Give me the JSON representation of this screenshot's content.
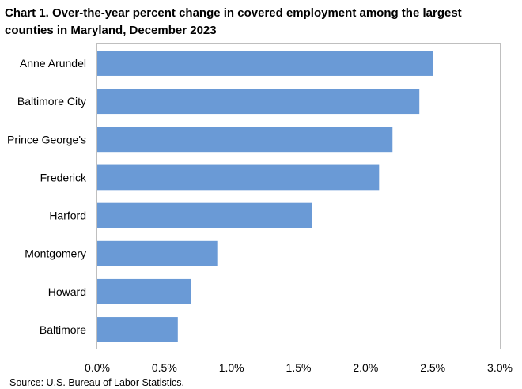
{
  "chart_data": {
    "type": "bar",
    "orientation": "horizontal",
    "title": "Chart 1. Over-the-year percent change in covered employment among the largest counties in Maryland, December 2023",
    "categories": [
      "Anne Arundel",
      "Baltimore City",
      "Prince George's",
      "Frederick",
      "Harford",
      "Montgomery",
      "Howard",
      "Baltimore"
    ],
    "values": [
      2.5,
      2.4,
      2.2,
      2.1,
      1.6,
      0.9,
      0.7,
      0.6
    ],
    "unit": "percent",
    "xlim": [
      0,
      3.0
    ],
    "x_ticks": [
      0.0,
      0.5,
      1.0,
      1.5,
      2.0,
      2.5,
      3.0
    ],
    "x_tick_labels": [
      "0.0%",
      "0.5%",
      "1.0%",
      "1.5%",
      "2.0%",
      "2.5%",
      "3.0%"
    ],
    "xlabel": "",
    "ylabel": "",
    "grid": false,
    "legend": "none",
    "bar_color": "#6a9ad6",
    "source": "Source: U.S. Bureau of Labor Statistics."
  }
}
